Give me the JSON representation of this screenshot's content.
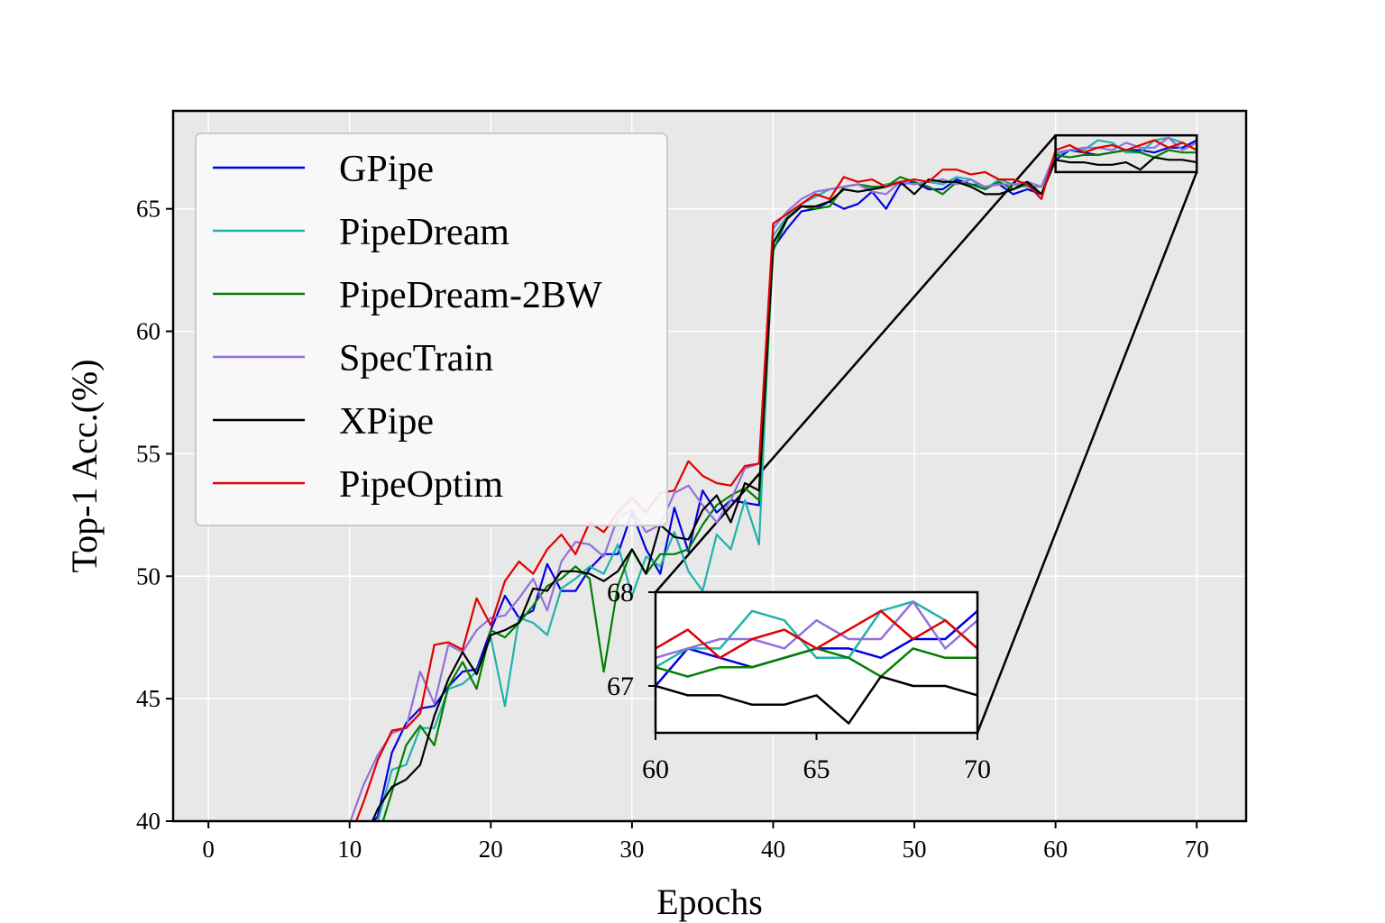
{
  "chart_data": {
    "type": "line",
    "xlabel": "Epochs",
    "ylabel": "Top-1 Acc.(%)",
    "xlim": [
      -2.5,
      73.5
    ],
    "ylim": [
      40,
      69
    ],
    "xticks": [
      0,
      10,
      20,
      30,
      40,
      50,
      60,
      70
    ],
    "yticks": [
      40,
      45,
      50,
      55,
      60,
      65
    ],
    "grid": true,
    "background": "#e8e8e8",
    "legend_position": "upper-left",
    "x": [
      10,
      11,
      12,
      13,
      14,
      15,
      16,
      17,
      18,
      19,
      20,
      21,
      22,
      23,
      24,
      25,
      26,
      27,
      28,
      29,
      30,
      31,
      32,
      33,
      34,
      35,
      36,
      37,
      38,
      39,
      40,
      41,
      42,
      43,
      44,
      45,
      46,
      47,
      48,
      49,
      50,
      51,
      52,
      53,
      54,
      55,
      56,
      57,
      58,
      59,
      60,
      61,
      62,
      63,
      64,
      65,
      66,
      67,
      68,
      69,
      70
    ],
    "series": [
      {
        "name": "GPipe",
        "color": "#0000e0",
        "values": [
          38.5,
          39.5,
          40.2,
          42.8,
          44.0,
          44.6,
          44.7,
          45.5,
          46.1,
          46.2,
          47.8,
          49.2,
          48.3,
          48.6,
          50.5,
          49.4,
          49.4,
          50.3,
          50.9,
          50.9,
          52.6,
          51.1,
          50.1,
          52.8,
          51.0,
          53.5,
          52.6,
          53.1,
          53.0,
          52.9,
          63.4,
          64.2,
          64.9,
          65.0,
          65.3,
          65.0,
          65.2,
          65.7,
          65.0,
          66.0,
          66.1,
          65.8,
          65.8,
          66.2,
          66.0,
          65.9,
          66.0,
          65.6,
          65.8,
          65.6,
          67.0,
          67.4,
          67.3,
          67.2,
          67.3,
          67.4,
          67.4,
          67.3,
          67.5,
          67.5,
          67.8
        ]
      },
      {
        "name": "PipeDream",
        "color": "#20b2aa",
        "values": [
          38.5,
          39.0,
          40.0,
          42.1,
          42.3,
          43.8,
          43.8,
          45.4,
          45.6,
          46.1,
          47.5,
          44.7,
          48.3,
          48.1,
          47.6,
          49.5,
          49.9,
          50.4,
          50.1,
          51.3,
          49.2,
          50.8,
          50.4,
          51.8,
          50.2,
          49.4,
          51.7,
          51.1,
          53.1,
          51.3,
          63.9,
          64.7,
          65.2,
          65.5,
          65.8,
          65.9,
          66.0,
          65.8,
          66.0,
          66.1,
          66.0,
          66.1,
          66.0,
          66.3,
          66.2,
          65.8,
          66.2,
          66.0,
          65.9,
          65.9,
          67.2,
          67.4,
          67.4,
          67.8,
          67.7,
          67.3,
          67.3,
          67.8,
          67.9,
          67.7,
          67.4
        ]
      },
      {
        "name": "PipeDream-2BW",
        "color": "#008000",
        "values": [
          38.0,
          38.8,
          39.3,
          41.2,
          43.1,
          43.9,
          43.1,
          45.5,
          46.5,
          45.4,
          47.8,
          47.5,
          48.1,
          48.8,
          49.6,
          49.9,
          50.4,
          49.9,
          46.1,
          49.6,
          51.1,
          50.1,
          50.9,
          50.9,
          51.1,
          52.1,
          52.9,
          53.3,
          53.6,
          53.1,
          63.3,
          64.6,
          65.1,
          65.0,
          65.1,
          65.9,
          66.0,
          65.9,
          65.9,
          66.3,
          66.1,
          65.9,
          65.6,
          66.1,
          66.0,
          65.8,
          66.1,
          65.8,
          66.0,
          65.6,
          67.2,
          67.1,
          67.2,
          67.2,
          67.3,
          67.4,
          67.3,
          67.1,
          67.4,
          67.3,
          67.3
        ]
      },
      {
        "name": "SpecTrain",
        "color": "#9370db",
        "values": [
          39.9,
          41.5,
          42.7,
          43.6,
          43.8,
          46.1,
          44.8,
          47.2,
          46.9,
          47.8,
          48.3,
          48.4,
          49.1,
          49.9,
          48.6,
          50.6,
          51.4,
          51.3,
          50.8,
          52.4,
          52.7,
          51.8,
          52.1,
          53.4,
          53.7,
          52.9,
          52.2,
          53.1,
          54.4,
          54.6,
          64.2,
          64.9,
          65.4,
          65.7,
          65.8,
          65.9,
          66.0,
          65.7,
          65.6,
          66.1,
          66.0,
          66.1,
          66.2,
          66.0,
          66.2,
          65.9,
          66.0,
          66.0,
          66.1,
          65.9,
          67.3,
          67.4,
          67.5,
          67.5,
          67.4,
          67.7,
          67.5,
          67.5,
          67.9,
          67.4,
          67.7
        ]
      },
      {
        "name": "XPipe",
        "color": "#000000",
        "values": [
          38.0,
          39.2,
          40.5,
          41.4,
          41.7,
          42.3,
          44.3,
          45.8,
          46.9,
          46.0,
          47.6,
          47.8,
          48.1,
          49.5,
          49.4,
          50.2,
          50.2,
          50.1,
          49.8,
          50.2,
          51.1,
          50.1,
          52.1,
          51.6,
          51.5,
          52.7,
          53.3,
          52.2,
          53.8,
          53.5,
          63.6,
          64.6,
          65.1,
          65.1,
          65.3,
          65.8,
          65.7,
          65.8,
          65.9,
          66.1,
          65.6,
          66.2,
          66.1,
          66.1,
          65.9,
          65.6,
          65.6,
          65.8,
          66.1,
          65.6,
          67.0,
          66.9,
          66.9,
          66.8,
          66.8,
          66.9,
          66.6,
          67.1,
          67.0,
          67.0,
          66.9
        ]
      },
      {
        "name": "PipeOptim",
        "color": "#e00000",
        "values": [
          39.3,
          40.8,
          42.5,
          43.7,
          43.8,
          44.4,
          47.2,
          47.3,
          47.0,
          49.1,
          48.0,
          49.8,
          50.6,
          50.1,
          51.1,
          51.7,
          50.9,
          52.2,
          51.8,
          52.6,
          53.2,
          52.6,
          53.4,
          53.5,
          54.7,
          54.1,
          53.8,
          53.7,
          54.5,
          54.6,
          64.4,
          64.8,
          65.2,
          65.6,
          65.4,
          66.3,
          66.1,
          66.2,
          65.9,
          66.1,
          66.2,
          66.1,
          66.6,
          66.6,
          66.4,
          66.5,
          66.2,
          66.2,
          66.0,
          65.4,
          67.4,
          67.6,
          67.3,
          67.5,
          67.6,
          67.4,
          67.6,
          67.8,
          67.5,
          67.7,
          67.4
        ]
      }
    ],
    "inset": {
      "xlim": [
        60,
        70
      ],
      "ylim": [
        66.5,
        68
      ],
      "xticks": [
        60,
        65,
        70
      ],
      "yticks": [
        67,
        68
      ]
    }
  }
}
